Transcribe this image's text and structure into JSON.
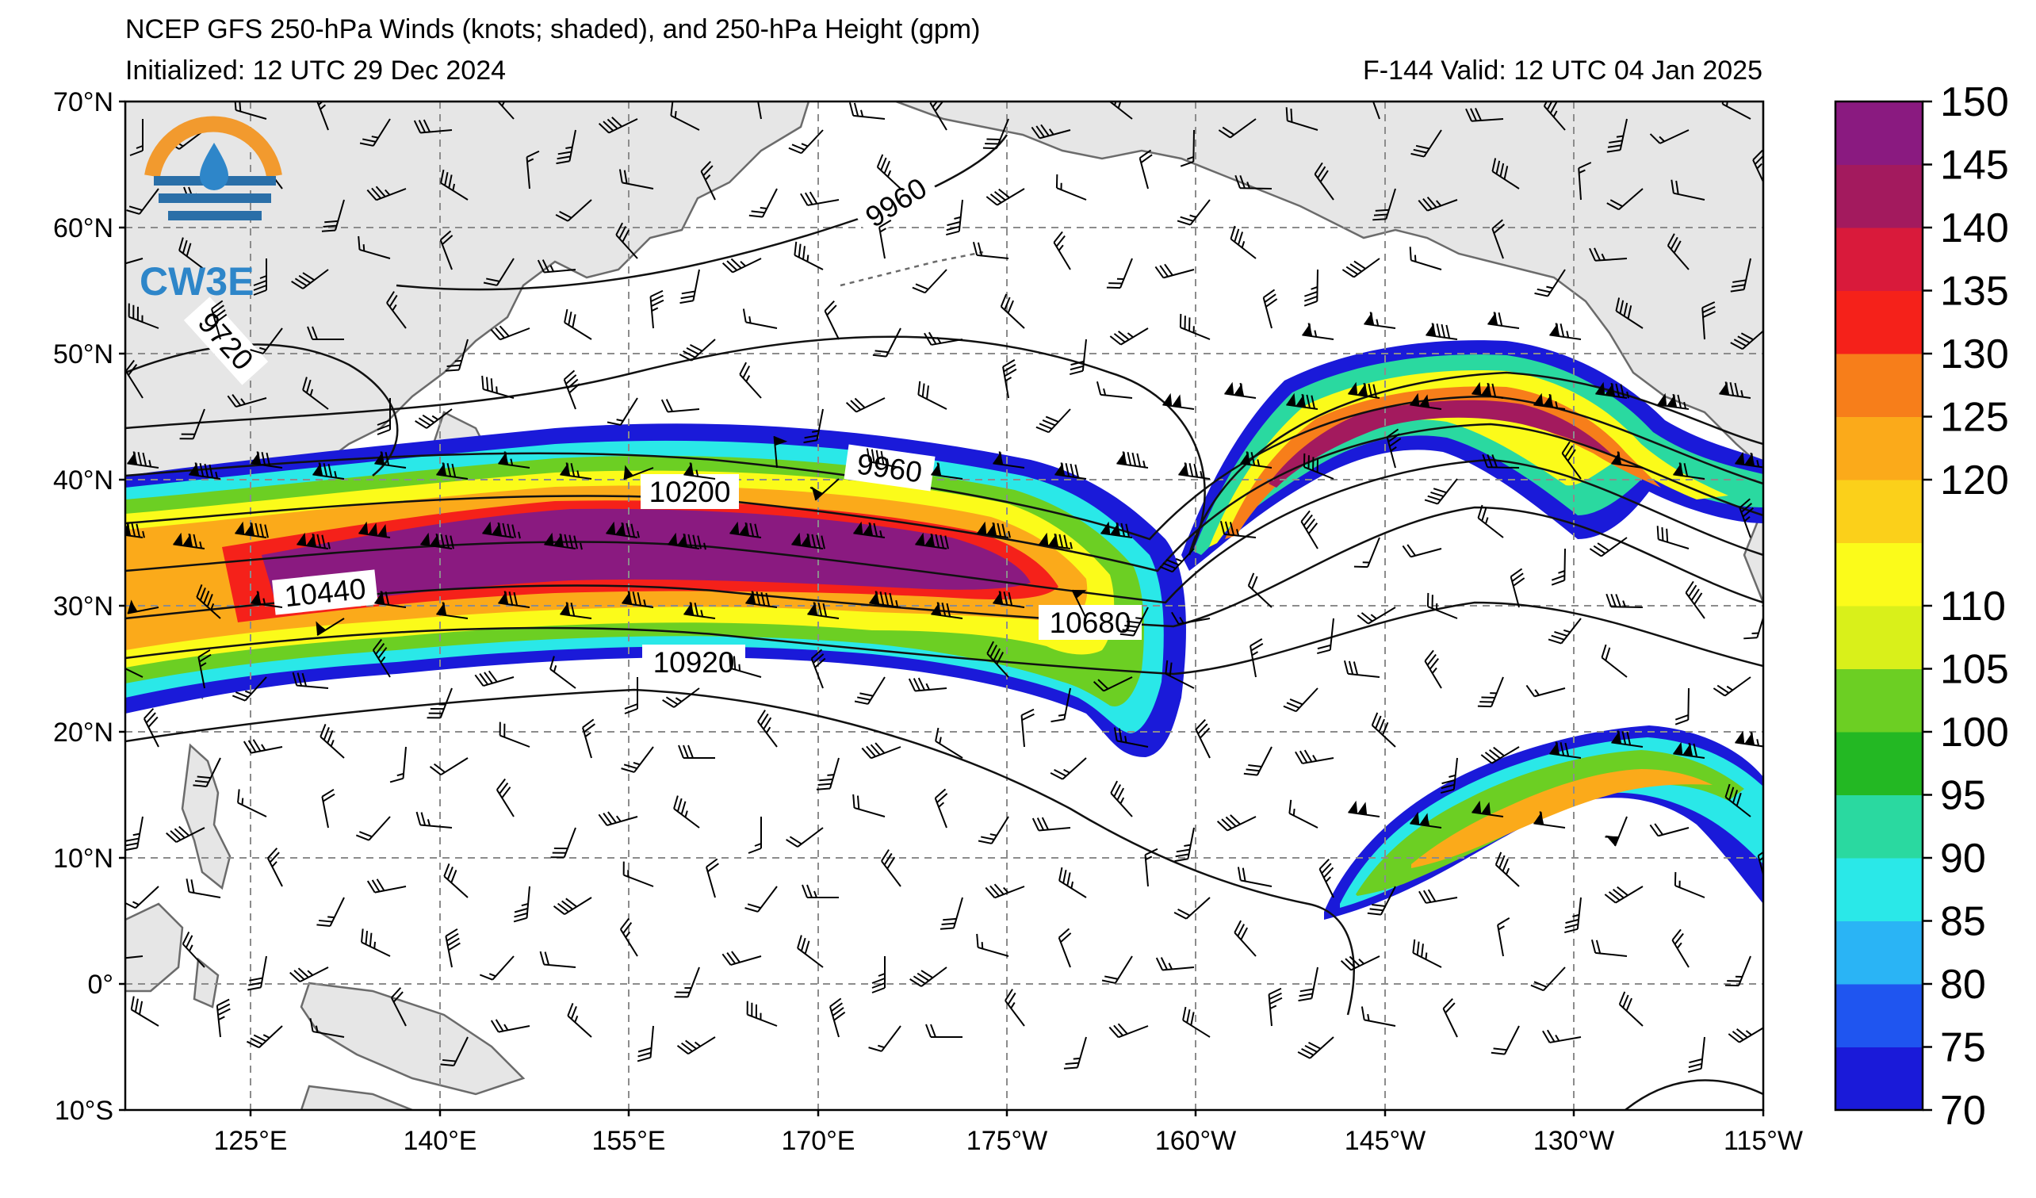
{
  "title": {
    "line1": "NCEP GFS 250-hPa Winds (knots; shaded), and 250-hPa Height (gpm)",
    "initialized": "Initialized: 12 UTC 29 Dec 2024",
    "valid": "F-144  Valid: 12 UTC 04 Jan 2025"
  },
  "logo": {
    "text": "CW3E"
  },
  "map": {
    "lat_labels": [
      "70°N",
      "60°N",
      "50°N",
      "40°N",
      "30°N",
      "20°N",
      "10°N",
      "0°",
      "10°S"
    ],
    "lon_labels": [
      "125°E",
      "140°E",
      "155°E",
      "170°E",
      "175°W",
      "160°W",
      "145°W",
      "130°W",
      "115°W"
    ],
    "contour_labels": [
      "9720",
      "9960",
      "9960",
      "10200",
      "10440",
      "10680",
      "10920"
    ],
    "grid": "dashed",
    "land_color": "#e6e6e6",
    "ocean_color": "#ffffff"
  },
  "colorbar": {
    "unit": "knots",
    "tick_labels": [
      "70",
      "75",
      "80",
      "85",
      "90",
      "95",
      "100",
      "105",
      "110",
      "120",
      "125",
      "130",
      "135",
      "140",
      "145",
      "150"
    ],
    "levels": [
      70,
      75,
      80,
      85,
      90,
      95,
      100,
      105,
      110,
      115,
      120,
      125,
      130,
      135,
      140,
      145,
      150
    ],
    "colors": [
      "#1a1ad9",
      "#1f55f0",
      "#2ab4f5",
      "#2ae8e8",
      "#2ad9a0",
      "#23b823",
      "#6ccf23",
      "#d9f01a",
      "#fbfb1a",
      "#fbd01a",
      "#fbaa1a",
      "#f77e1a",
      "#f5211a",
      "#d91a3b",
      "#a31a5e",
      "#8a1a80"
    ]
  }
}
